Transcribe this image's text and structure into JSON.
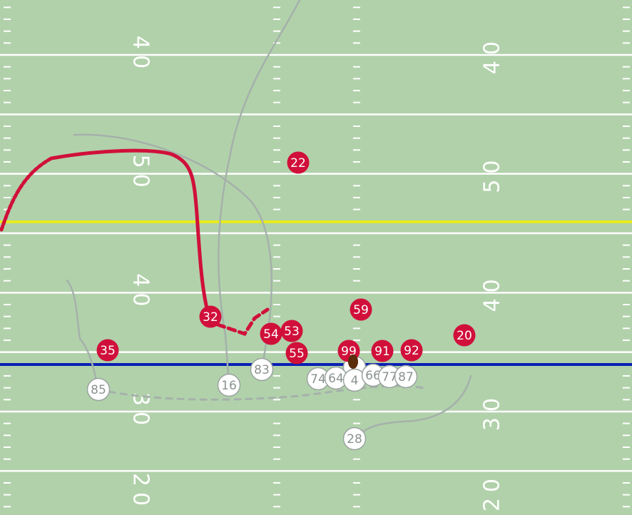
{
  "colors": {
    "field": "#b1d1aa",
    "lines": "#ffffff",
    "first_down_line": "#e6ec1e",
    "line_of_scrimmage": "#0a1fb4",
    "defense": "#d0103a",
    "offense": "#ffffff",
    "offense_border": "#9aa3a0",
    "offense_text": "#8a9290",
    "route_gray": "#a5b1ab",
    "ball": "#5a2d0c"
  },
  "yard_numbers": [
    {
      "left": "40",
      "right": "40"
    },
    {
      "left": "50",
      "right": "50"
    },
    {
      "left": "40",
      "right": "40"
    },
    {
      "left": "30",
      "right": "30"
    },
    {
      "left": "20",
      "right": "20"
    }
  ],
  "defense": [
    "22",
    "32",
    "59",
    "54",
    "53",
    "55",
    "35",
    "99",
    "91",
    "92",
    "20"
  ],
  "offense": [
    "85",
    "16",
    "83",
    "74",
    "64",
    "",
    "4",
    "66",
    "77",
    "87",
    "28"
  ],
  "ball_icon": "football-icon"
}
